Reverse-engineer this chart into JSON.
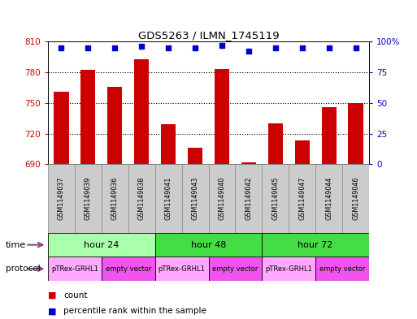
{
  "title": "GDS5263 / ILMN_1745119",
  "samples": [
    "GSM1149037",
    "GSM1149039",
    "GSM1149036",
    "GSM1149038",
    "GSM1149041",
    "GSM1149043",
    "GSM1149040",
    "GSM1149042",
    "GSM1149045",
    "GSM1149047",
    "GSM1149044",
    "GSM1149046"
  ],
  "counts": [
    761,
    782,
    766,
    793,
    729,
    706,
    783,
    692,
    730,
    713,
    746,
    750
  ],
  "percentile_ranks": [
    95,
    95,
    95,
    96,
    95,
    95,
    97,
    92,
    95,
    95,
    95,
    95
  ],
  "ylim_left": [
    690,
    810
  ],
  "ylim_right": [
    0,
    100
  ],
  "yticks_left": [
    690,
    720,
    750,
    780,
    810
  ],
  "yticks_right": [
    0,
    25,
    50,
    75,
    100
  ],
  "bar_color": "#cc0000",
  "dot_color": "#0000cc",
  "bar_width": 0.55,
  "time_groups": [
    {
      "label": "hour 24",
      "start": 0,
      "end": 4,
      "color": "#aaffaa"
    },
    {
      "label": "hour 48",
      "start": 4,
      "end": 8,
      "color": "#44dd44"
    },
    {
      "label": "hour 72",
      "start": 8,
      "end": 12,
      "color": "#44dd44"
    }
  ],
  "protocol_groups": [
    {
      "label": "pTRex-GRHL1",
      "start": 0,
      "end": 2,
      "color": "#ffaaff"
    },
    {
      "label": "empty vector",
      "start": 2,
      "end": 4,
      "color": "#ee55ee"
    },
    {
      "label": "pTRex-GRHL1",
      "start": 4,
      "end": 6,
      "color": "#ffaaff"
    },
    {
      "label": "empty vector",
      "start": 6,
      "end": 8,
      "color": "#ee55ee"
    },
    {
      "label": "pTRex-GRHL1",
      "start": 8,
      "end": 10,
      "color": "#ffaaff"
    },
    {
      "label": "empty vector",
      "start": 10,
      "end": 12,
      "color": "#ee55ee"
    }
  ],
  "background_color": "#ffffff"
}
